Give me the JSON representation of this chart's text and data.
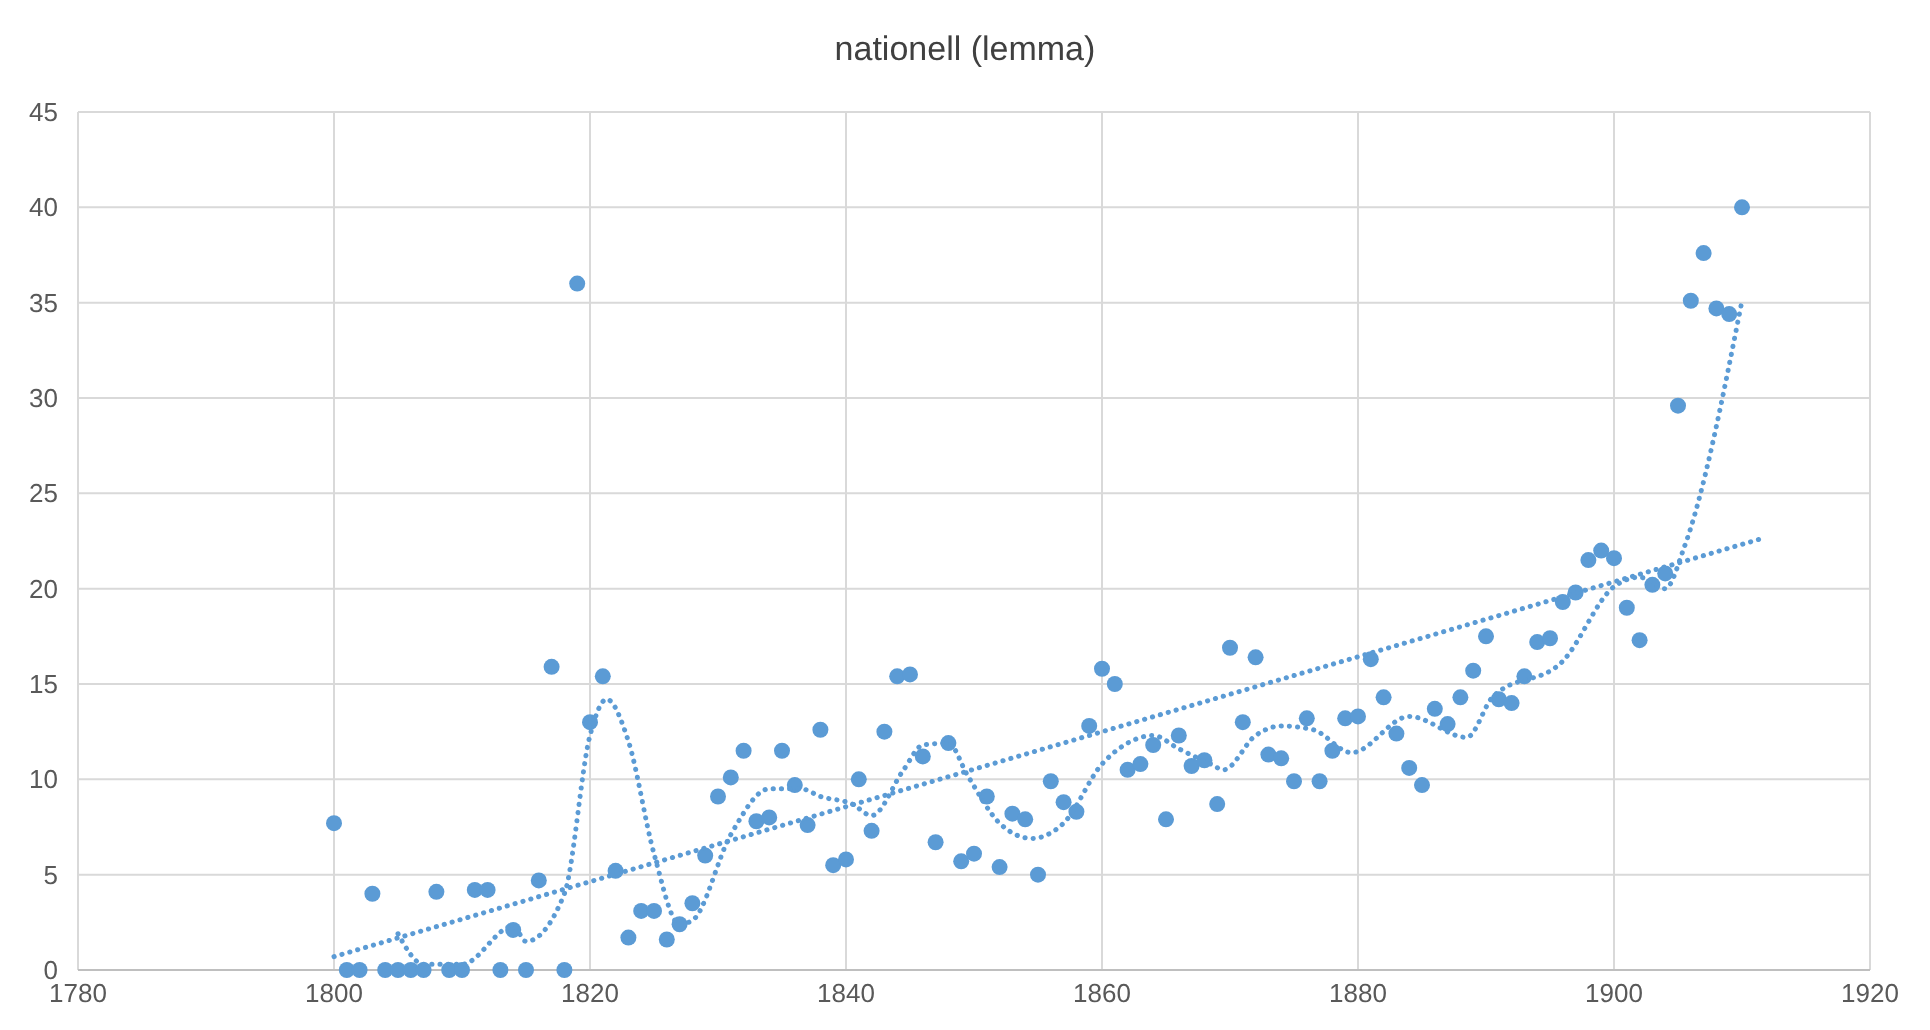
{
  "chart_data": {
    "type": "scatter",
    "title": "nationell (lemma)",
    "xlim": [
      1780,
      1920
    ],
    "xticks": [
      1780,
      1800,
      1820,
      1840,
      1860,
      1880,
      1900,
      1920
    ],
    "ylim": [
      0,
      45
    ],
    "yticks": [
      0,
      5,
      10,
      15,
      20,
      25,
      30,
      35,
      40,
      45
    ],
    "grid": true,
    "marker": "circle",
    "series": [
      {
        "color": "#5b9bd5",
        "x": [
          1800,
          1801,
          1802,
          1803,
          1804,
          1805,
          1806,
          1807,
          1808,
          1809,
          1810,
          1811,
          1812,
          1813,
          1814,
          1815,
          1816,
          1817,
          1818,
          1819,
          1820,
          1821,
          1822,
          1823,
          1824,
          1825,
          1826,
          1827,
          1828,
          1829,
          1830,
          1831,
          1832,
          1833,
          1834,
          1835,
          1836,
          1837,
          1838,
          1839,
          1840,
          1841,
          1842,
          1843,
          1844,
          1845,
          1846,
          1847,
          1848,
          1849,
          1850,
          1851,
          1852,
          1853,
          1854,
          1855,
          1856,
          1857,
          1858,
          1859,
          1860,
          1861,
          1862,
          1863,
          1864,
          1865,
          1866,
          1867,
          1868,
          1869,
          1870,
          1871,
          1872,
          1873,
          1874,
          1875,
          1876,
          1877,
          1878,
          1879,
          1880,
          1881,
          1882,
          1883,
          1884,
          1885,
          1886,
          1887,
          1888,
          1889,
          1890,
          1891,
          1892,
          1893,
          1894,
          1895,
          1896,
          1897,
          1898,
          1899,
          1900,
          1901,
          1902,
          1903,
          1904,
          1905,
          1906,
          1907,
          1908,
          1909,
          1910
        ],
        "values": [
          7.7,
          0,
          0,
          4.0,
          0,
          0,
          0,
          0,
          4.1,
          0,
          0,
          4.2,
          4.2,
          0,
          2.1,
          0,
          4.7,
          15.9,
          0,
          36.0,
          13.0,
          15.4,
          5.2,
          1.7,
          3.1,
          3.1,
          1.6,
          2.4,
          3.5,
          6.0,
          9.1,
          10.1,
          11.5,
          7.8,
          8.0,
          11.5,
          9.7,
          7.6,
          12.6,
          5.5,
          5.8,
          10.0,
          7.3,
          12.5,
          15.4,
          15.5,
          11.2,
          6.7,
          11.9,
          5.7,
          6.1,
          9.1,
          5.4,
          8.2,
          7.9,
          5.0,
          9.9,
          8.8,
          8.3,
          12.8,
          15.8,
          15.0,
          10.5,
          10.8,
          11.8,
          7.9,
          12.3,
          10.7,
          11.0,
          8.7,
          16.9,
          13.0,
          16.4,
          11.3,
          11.1,
          9.9,
          13.2,
          9.9,
          11.5,
          13.2,
          13.3,
          16.3,
          14.3,
          12.4,
          10.6,
          9.7,
          13.7,
          12.9,
          14.3,
          15.7,
          17.5,
          14.2,
          14.0,
          15.4,
          17.2,
          17.4,
          19.3,
          19.8,
          21.5,
          22.0,
          21.6,
          19.0,
          17.3,
          20.2,
          20.8,
          29.6,
          35.1,
          37.6,
          34.7,
          34.4,
          40.0
        ]
      },
      {
        "type": "line",
        "color": "#5b9bd5",
        "line_style": "dotted",
        "marker": "none",
        "x": [
          1800,
          1911.4
        ],
        "values": [
          0.7,
          22.6
        ]
      },
      {
        "type": "line",
        "color": "#5b9bd5",
        "line_style": "dotted",
        "marker": "none",
        "x": [
          1805,
          1807,
          1810,
          1814,
          1815,
          1818,
          1820,
          1821.3,
          1823,
          1825,
          1827,
          1828,
          1831,
          1834,
          1836.5,
          1838,
          1840.5,
          1842,
          1844.5,
          1846,
          1848,
          1849.5,
          1852,
          1854.5,
          1857,
          1860,
          1862,
          1864,
          1866,
          1868.5,
          1869.5,
          1872,
          1874,
          1876.5,
          1879.5,
          1884,
          1888.5,
          1890.5,
          1896,
          1900,
          1902,
          1904,
          1905.5,
          1910
        ],
        "values": [
          1.9,
          0.3,
          0.3,
          2.3,
          1.5,
          4.0,
          12.3,
          14.2,
          12.0,
          6.1,
          2.4,
          2.6,
          7.1,
          9.5,
          9.5,
          9.1,
          8.7,
          8.1,
          10.5,
          11.8,
          11.9,
          10.2,
          7.7,
          6.9,
          7.7,
          10.8,
          11.9,
          12.3,
          11.6,
          10.8,
          10.5,
          12.3,
          12.8,
          12.6,
          11.4,
          13.3,
          12.2,
          14.3,
          16.2,
          20.1,
          20.6,
          20.0,
          22.2,
          35.1
        ]
      }
    ]
  }
}
